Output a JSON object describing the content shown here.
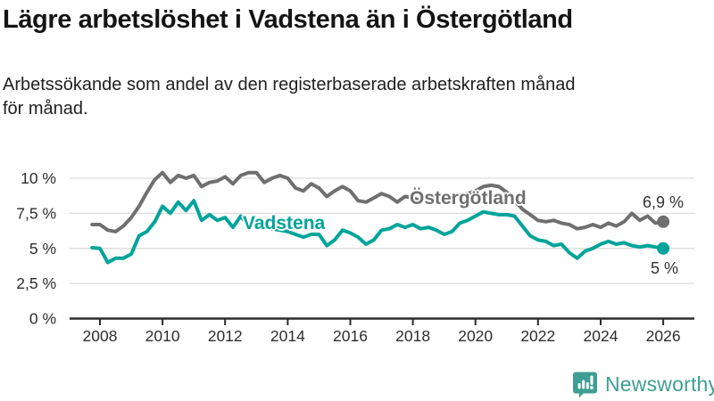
{
  "chart_data": {
    "type": "line",
    "title": "Lägre arbetslöshet i Vadstena än i Östergötland",
    "subtitle_lines": [
      "Arbetssökande som andel av den registerbaserade arbetskraften månad",
      "för månad."
    ],
    "unit": "%",
    "grid": true,
    "legend": "inline-labels",
    "x_range": [
      2007.75,
      2026.1
    ],
    "y_range": [
      0,
      11
    ],
    "x_ticks": [
      2008,
      2010,
      2012,
      2014,
      2016,
      2018,
      2020,
      2022,
      2024,
      2026
    ],
    "x_tick_labels": [
      "2008",
      "2010",
      "2012",
      "2014",
      "2016",
      "2018",
      "2020",
      "2022",
      "2024",
      "2026"
    ],
    "y_ticks": [
      0,
      2.5,
      5,
      7.5,
      10
    ],
    "y_tick_labels": [
      "0 %",
      "2,5 %",
      "5 %",
      "7,5 %",
      "10 %"
    ],
    "x": [
      2007.75,
      2008,
      2008.25,
      2008.5,
      2008.75,
      2009,
      2009.25,
      2009.5,
      2009.75,
      2010,
      2010.25,
      2010.5,
      2010.75,
      2011,
      2011.25,
      2011.5,
      2011.75,
      2012,
      2012.25,
      2012.5,
      2012.75,
      2013,
      2013.25,
      2013.5,
      2013.75,
      2014,
      2014.25,
      2014.5,
      2014.75,
      2015,
      2015.25,
      2015.5,
      2015.75,
      2016,
      2016.25,
      2016.5,
      2016.75,
      2017,
      2017.25,
      2017.5,
      2017.75,
      2018,
      2018.25,
      2018.5,
      2018.75,
      2019,
      2019.25,
      2019.5,
      2019.75,
      2020,
      2020.25,
      2020.5,
      2020.75,
      2021,
      2021.25,
      2021.5,
      2021.75,
      2022,
      2022.25,
      2022.5,
      2022.75,
      2023,
      2023.25,
      2023.5,
      2023.75,
      2024,
      2024.25,
      2024.5,
      2024.75,
      2025,
      2025.25,
      2025.5,
      2025.75,
      2026
    ],
    "series": [
      {
        "name": "Östergötland",
        "color": "#6f6f6f",
        "end_label": "6,9 %",
        "end_value": 6.9,
        "values": [
          6.7,
          6.7,
          6.3,
          6.2,
          6.6,
          7.2,
          8.0,
          9.0,
          9.9,
          10.4,
          9.7,
          10.2,
          10.0,
          10.2,
          9.4,
          9.7,
          9.8,
          10.1,
          9.6,
          10.2,
          10.4,
          10.4,
          9.7,
          10.0,
          10.2,
          10.0,
          9.3,
          9.1,
          9.6,
          9.3,
          8.7,
          9.1,
          9.4,
          9.1,
          8.4,
          8.3,
          8.6,
          8.9,
          8.7,
          8.3,
          8.7,
          8.6,
          8.4,
          8.5,
          8.6,
          8.6,
          8.7,
          8.8,
          8.9,
          9.1,
          9.4,
          9.5,
          9.4,
          9.0,
          8.4,
          7.8,
          7.4,
          7.0,
          6.9,
          7.0,
          6.8,
          6.7,
          6.4,
          6.5,
          6.7,
          6.5,
          6.8,
          6.6,
          6.9,
          7.5,
          7.0,
          7.3,
          6.8,
          6.9
        ]
      },
      {
        "name": "Vadstena",
        "color": "#00A49A",
        "end_label": "5 %",
        "end_value": 5.0,
        "values": [
          5.05,
          5.0,
          4.0,
          4.3,
          4.3,
          4.6,
          5.9,
          6.2,
          6.9,
          8.0,
          7.5,
          8.3,
          7.7,
          8.4,
          7.0,
          7.4,
          7.0,
          7.2,
          6.5,
          7.3,
          6.6,
          6.9,
          6.7,
          6.4,
          6.3,
          6.2,
          6.0,
          5.8,
          6.0,
          6.0,
          5.2,
          5.6,
          6.3,
          6.1,
          5.8,
          5.3,
          5.6,
          6.3,
          6.4,
          6.7,
          6.5,
          6.7,
          6.4,
          6.5,
          6.3,
          6.0,
          6.2,
          6.8,
          7.0,
          7.3,
          7.6,
          7.5,
          7.4,
          7.4,
          7.3,
          6.6,
          5.9,
          5.6,
          5.5,
          5.2,
          5.3,
          4.7,
          4.3,
          4.8,
          5.0,
          5.3,
          5.5,
          5.3,
          5.4,
          5.2,
          5.1,
          5.2,
          5.1,
          5.0
        ]
      }
    ]
  },
  "footer": {
    "brand": "Newsworthy"
  },
  "colors": {
    "teal": "#00A49A",
    "gray": "#6f6f6f",
    "brand_teal": "#3E9E94",
    "grid": "#dcdcdc",
    "axis": "#2b2b2b",
    "text": "#2e2e2e"
  }
}
